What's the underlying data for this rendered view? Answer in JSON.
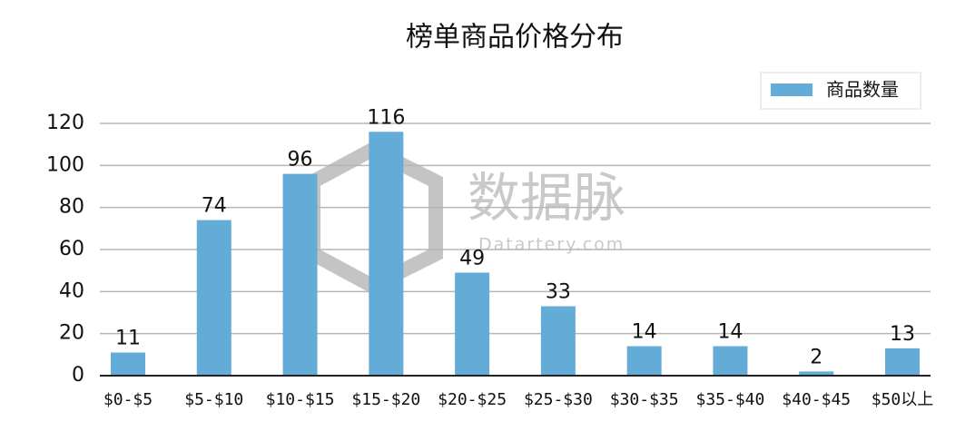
{
  "chart_data": {
    "type": "bar",
    "title": "榜单商品价格分布",
    "categories": [
      "$0-$5",
      "$5-$10",
      "$10-$15",
      "$15-$20",
      "$20-$25",
      "$25-$30",
      "$30-$35",
      "$35-$40",
      "$40-$45",
      "$50以上"
    ],
    "series": [
      {
        "name": "商品数量",
        "color": "#64acd8",
        "values": [
          11,
          74,
          96,
          116,
          49,
          33,
          14,
          14,
          2,
          13
        ]
      }
    ],
    "ylim": [
      0,
      120
    ],
    "yticks": [
      0,
      20,
      40,
      60,
      80,
      100,
      120
    ],
    "grid": true,
    "legend": "top-right",
    "watermark": "数据脉",
    "watermark_sub": "Datartery.com"
  }
}
